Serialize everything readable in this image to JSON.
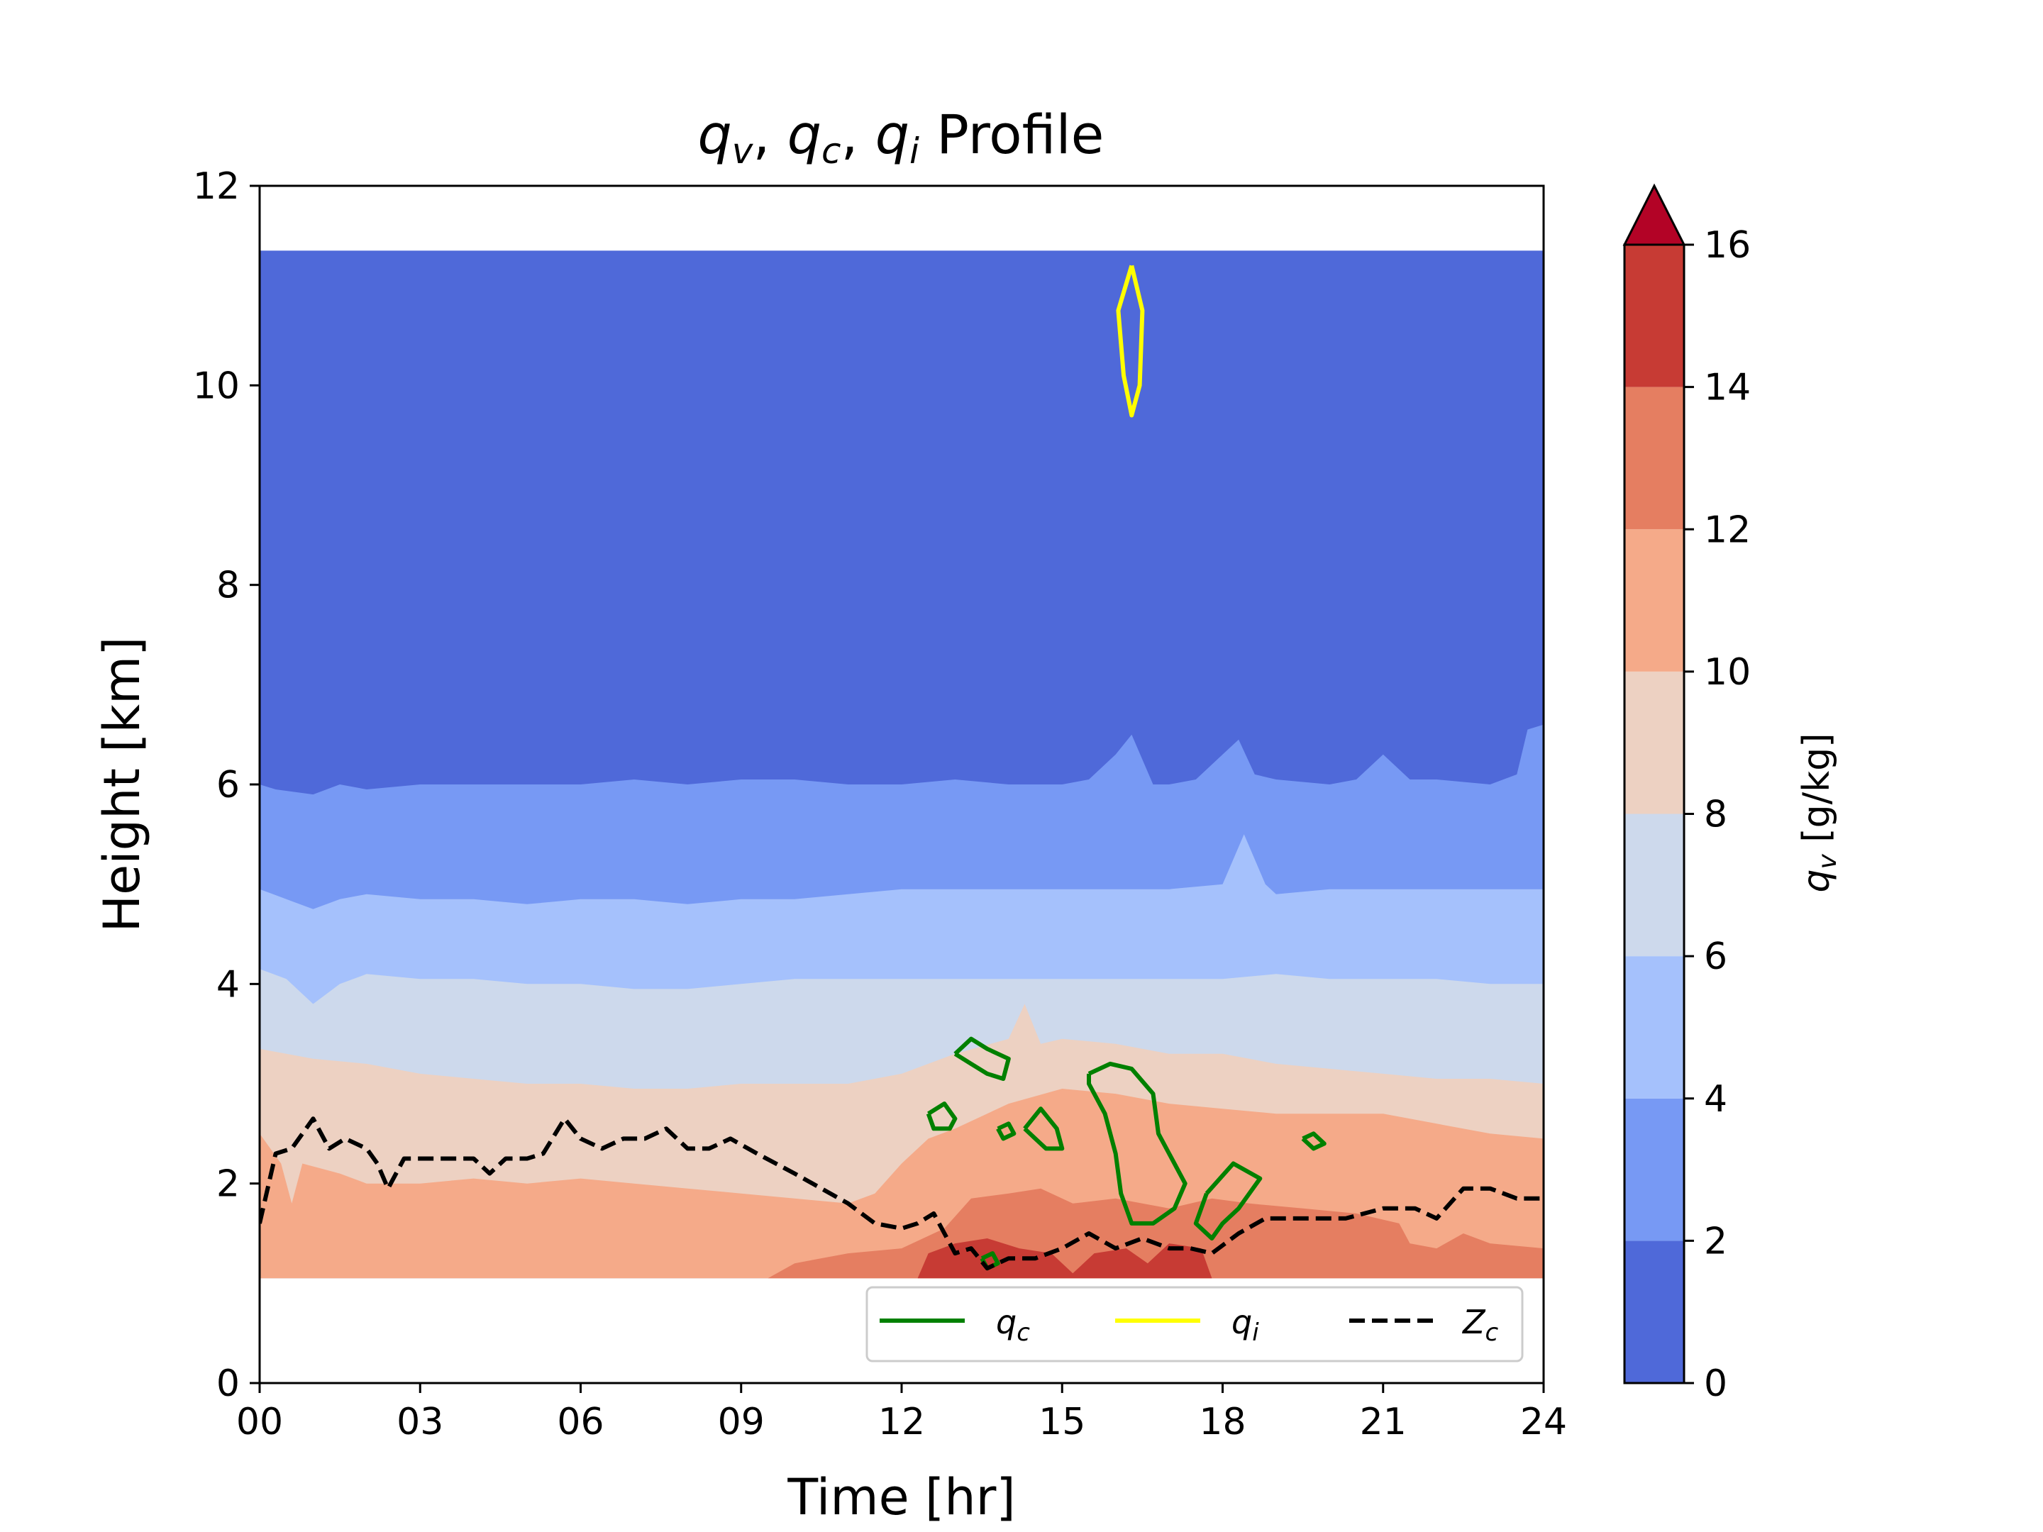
{
  "chart_data": {
    "type": "contour",
    "title": {
      "base": [
        "q",
        "q",
        "q"
      ],
      "subs": [
        "v",
        "c",
        "i"
      ],
      "suffix": " Profile"
    },
    "xlabel": "Time [hr]",
    "ylabel": "Height [km]",
    "xlim": [
      0,
      24
    ],
    "ylim": [
      0,
      12
    ],
    "x_ticks": [
      0,
      3,
      6,
      9,
      12,
      15,
      18,
      21,
      24
    ],
    "x_tick_labels": [
      "00",
      "03",
      "06",
      "09",
      "12",
      "15",
      "18",
      "21",
      "24"
    ],
    "y_ticks": [
      0,
      2,
      4,
      6,
      8,
      10,
      12
    ],
    "y_tick_labels": [
      "0",
      "2",
      "4",
      "6",
      "8",
      "10",
      "12"
    ],
    "data_extent": {
      "time": [
        0,
        24
      ],
      "height": [
        1.05,
        11.35
      ]
    },
    "colorbar": {
      "label": {
        "base": "q",
        "sub": "v",
        "unit": " [g/kg]"
      },
      "levels": [
        0,
        2,
        4,
        6,
        8,
        10,
        12,
        14,
        16
      ],
      "tick_labels": [
        "0",
        "2",
        "4",
        "6",
        "8",
        "10",
        "12",
        "14",
        "16"
      ],
      "colors": [
        "#4f69d9",
        "#7799f4",
        "#a5c1fc",
        "#cdd9ec",
        "#edd1c2",
        "#f5aa89",
        "#e57e61",
        "#c73b34"
      ],
      "over_color": "#b30326",
      "extend": "max"
    },
    "qv_bands": [
      {
        "level_min": 0,
        "level_max": 2,
        "color": "#4f69d9",
        "upper_boundary": [
          [
            0,
            11.35
          ],
          [
            24,
            11.35
          ]
        ]
      },
      {
        "level_min": 2,
        "level_max": 4,
        "color": "#7799f4",
        "upper_boundary": [
          [
            0,
            6.0
          ],
          [
            0.3,
            5.95
          ],
          [
            1,
            5.9
          ],
          [
            1.5,
            6.0
          ],
          [
            2,
            5.95
          ],
          [
            3,
            6.0
          ],
          [
            4,
            6.0
          ],
          [
            5,
            6.0
          ],
          [
            6,
            6.0
          ],
          [
            7,
            6.05
          ],
          [
            8,
            6.0
          ],
          [
            9,
            6.05
          ],
          [
            10,
            6.05
          ],
          [
            11,
            6.0
          ],
          [
            12,
            6.0
          ],
          [
            13,
            6.05
          ],
          [
            14,
            6.0
          ],
          [
            15,
            6.0
          ],
          [
            15.5,
            6.05
          ],
          [
            16,
            6.3
          ],
          [
            16.3,
            6.5
          ],
          [
            16.7,
            6.0
          ],
          [
            17,
            6.0
          ],
          [
            17.5,
            6.05
          ],
          [
            18,
            6.3
          ],
          [
            18.3,
            6.45
          ],
          [
            18.6,
            6.1
          ],
          [
            19,
            6.05
          ],
          [
            20,
            6.0
          ],
          [
            20.5,
            6.05
          ],
          [
            21,
            6.3
          ],
          [
            21.5,
            6.05
          ],
          [
            22,
            6.05
          ],
          [
            23,
            6.0
          ],
          [
            23.5,
            6.1
          ],
          [
            23.7,
            6.55
          ],
          [
            24,
            6.6
          ]
        ]
      },
      {
        "level_min": 4,
        "level_max": 6,
        "color": "#a5c1fc",
        "upper_boundary": [
          [
            0,
            4.95
          ],
          [
            0.5,
            4.85
          ],
          [
            1,
            4.75
          ],
          [
            1.5,
            4.85
          ],
          [
            2,
            4.9
          ],
          [
            3,
            4.85
          ],
          [
            4,
            4.85
          ],
          [
            5,
            4.8
          ],
          [
            6,
            4.85
          ],
          [
            7,
            4.85
          ],
          [
            8,
            4.8
          ],
          [
            9,
            4.85
          ],
          [
            10,
            4.85
          ],
          [
            11,
            4.9
          ],
          [
            12,
            4.95
          ],
          [
            13,
            4.95
          ],
          [
            14,
            4.95
          ],
          [
            15,
            4.95
          ],
          [
            16,
            4.95
          ],
          [
            17,
            4.95
          ],
          [
            18,
            5.0
          ],
          [
            18.4,
            5.5
          ],
          [
            18.8,
            5.0
          ],
          [
            19,
            4.9
          ],
          [
            20,
            4.95
          ],
          [
            21,
            4.95
          ],
          [
            22,
            4.95
          ],
          [
            23,
            4.95
          ],
          [
            24,
            4.95
          ]
        ]
      },
      {
        "level_min": 6,
        "level_max": 8,
        "color": "#cdd9ec",
        "upper_boundary": [
          [
            0,
            4.15
          ],
          [
            0.5,
            4.05
          ],
          [
            1,
            3.8
          ],
          [
            1.5,
            4.0
          ],
          [
            2,
            4.1
          ],
          [
            3,
            4.05
          ],
          [
            4,
            4.05
          ],
          [
            5,
            4.0
          ],
          [
            6,
            4.0
          ],
          [
            7,
            3.95
          ],
          [
            8,
            3.95
          ],
          [
            9,
            4.0
          ],
          [
            10,
            4.05
          ],
          [
            11,
            4.05
          ],
          [
            12,
            4.05
          ],
          [
            13,
            4.05
          ],
          [
            14,
            4.05
          ],
          [
            15,
            4.05
          ],
          [
            16,
            4.05
          ],
          [
            17,
            4.05
          ],
          [
            18,
            4.05
          ],
          [
            19,
            4.1
          ],
          [
            20,
            4.05
          ],
          [
            21,
            4.05
          ],
          [
            22,
            4.05
          ],
          [
            23,
            4.0
          ],
          [
            24,
            4.0
          ]
        ]
      },
      {
        "level_min": 8,
        "level_max": 10,
        "color": "#edd1c2",
        "upper_boundary": [
          [
            0,
            3.35
          ],
          [
            0.5,
            3.3
          ],
          [
            1,
            3.25
          ],
          [
            2,
            3.2
          ],
          [
            3,
            3.1
          ],
          [
            4,
            3.05
          ],
          [
            5,
            3.0
          ],
          [
            6,
            3.0
          ],
          [
            7,
            2.95
          ],
          [
            8,
            2.95
          ],
          [
            9,
            3.0
          ],
          [
            10,
            3.0
          ],
          [
            11,
            3.0
          ],
          [
            12,
            3.1
          ],
          [
            13,
            3.3
          ],
          [
            14,
            3.45
          ],
          [
            14.3,
            3.8
          ],
          [
            14.6,
            3.4
          ],
          [
            15,
            3.45
          ],
          [
            16,
            3.4
          ],
          [
            17,
            3.3
          ],
          [
            18,
            3.3
          ],
          [
            19,
            3.2
          ],
          [
            20,
            3.15
          ],
          [
            21,
            3.1
          ],
          [
            22,
            3.05
          ],
          [
            23,
            3.05
          ],
          [
            24,
            3.0
          ]
        ]
      },
      {
        "level_min": 10,
        "level_max": 12,
        "color": "#f5aa89",
        "upper_boundary": [
          [
            0,
            2.5
          ],
          [
            0.4,
            2.2
          ],
          [
            0.6,
            1.8
          ],
          [
            0.8,
            2.2
          ],
          [
            1.5,
            2.1
          ],
          [
            2,
            2.0
          ],
          [
            3,
            2.0
          ],
          [
            4,
            2.05
          ],
          [
            5,
            2.0
          ],
          [
            6,
            2.05
          ],
          [
            7,
            2.0
          ],
          [
            8,
            1.95
          ],
          [
            9,
            1.9
          ],
          [
            10,
            1.85
          ],
          [
            11,
            1.8
          ],
          [
            11.5,
            1.9
          ],
          [
            12,
            2.2
          ],
          [
            12.5,
            2.45
          ],
          [
            13,
            2.55
          ],
          [
            14,
            2.8
          ],
          [
            15,
            2.95
          ],
          [
            16,
            2.9
          ],
          [
            17,
            2.8
          ],
          [
            18,
            2.75
          ],
          [
            19,
            2.7
          ],
          [
            20,
            2.7
          ],
          [
            21,
            2.7
          ],
          [
            22,
            2.6
          ],
          [
            23,
            2.5
          ],
          [
            24,
            2.45
          ]
        ]
      },
      {
        "level_min": 12,
        "level_max": 14,
        "color": "#e57e61",
        "upper_boundary": [
          [
            0,
            1.05
          ],
          [
            9.5,
            1.05
          ],
          [
            10,
            1.2
          ],
          [
            11,
            1.3
          ],
          [
            12,
            1.35
          ],
          [
            12.8,
            1.55
          ],
          [
            13.3,
            1.85
          ],
          [
            14,
            1.9
          ],
          [
            14.6,
            1.95
          ],
          [
            15.2,
            1.8
          ],
          [
            16,
            1.85
          ],
          [
            17,
            1.75
          ],
          [
            17.8,
            1.85
          ],
          [
            18.5,
            1.8
          ],
          [
            19.5,
            1.75
          ],
          [
            20.5,
            1.7
          ],
          [
            21.3,
            1.6
          ],
          [
            21.5,
            1.4
          ],
          [
            22,
            1.35
          ],
          [
            22.5,
            1.5
          ],
          [
            23,
            1.4
          ],
          [
            24,
            1.35
          ]
        ]
      },
      {
        "level_min": 14,
        "level_max": 16,
        "color": "#c73b34",
        "upper_boundary": [
          [
            0,
            1.05
          ],
          [
            12.3,
            1.05
          ],
          [
            12.5,
            1.3
          ],
          [
            13,
            1.4
          ],
          [
            13.6,
            1.45
          ],
          [
            14.2,
            1.35
          ],
          [
            14.8,
            1.3
          ],
          [
            15.2,
            1.1
          ],
          [
            15.6,
            1.3
          ],
          [
            16.2,
            1.35
          ],
          [
            16.6,
            1.2
          ],
          [
            17,
            1.4
          ],
          [
            17.6,
            1.35
          ],
          [
            17.8,
            1.05
          ],
          [
            24,
            1.05
          ]
        ]
      }
    ],
    "qc_contours": [
      [
        [
          13.0,
          3.3
        ],
        [
          13.3,
          3.45
        ],
        [
          13.6,
          3.35
        ],
        [
          14.0,
          3.25
        ],
        [
          13.9,
          3.05
        ],
        [
          13.6,
          3.1
        ],
        [
          13.3,
          3.2
        ],
        [
          13.0,
          3.3
        ]
      ],
      [
        [
          12.5,
          2.7
        ],
        [
          12.8,
          2.8
        ],
        [
          13.0,
          2.65
        ],
        [
          12.9,
          2.55
        ],
        [
          12.6,
          2.55
        ],
        [
          12.5,
          2.7
        ]
      ],
      [
        [
          13.8,
          2.55
        ],
        [
          14.0,
          2.6
        ],
        [
          14.1,
          2.5
        ],
        [
          13.9,
          2.45
        ],
        [
          13.8,
          2.55
        ]
      ],
      [
        [
          14.3,
          2.55
        ],
        [
          14.6,
          2.75
        ],
        [
          14.9,
          2.55
        ],
        [
          15.0,
          2.35
        ],
        [
          14.7,
          2.35
        ],
        [
          14.5,
          2.45
        ],
        [
          14.3,
          2.55
        ]
      ],
      [
        [
          15.5,
          3.1
        ],
        [
          15.9,
          3.2
        ],
        [
          16.3,
          3.15
        ],
        [
          16.7,
          2.9
        ],
        [
          16.8,
          2.5
        ],
        [
          17.0,
          2.3
        ],
        [
          17.3,
          2.0
        ],
        [
          17.1,
          1.75
        ],
        [
          16.7,
          1.6
        ],
        [
          16.3,
          1.6
        ],
        [
          16.1,
          1.9
        ],
        [
          16.0,
          2.3
        ],
        [
          15.8,
          2.7
        ],
        [
          15.5,
          3.0
        ],
        [
          15.5,
          3.1
        ]
      ],
      [
        [
          17.7,
          1.9
        ],
        [
          18.2,
          2.2
        ],
        [
          18.7,
          2.05
        ],
        [
          18.3,
          1.75
        ],
        [
          18.0,
          1.6
        ],
        [
          17.8,
          1.45
        ],
        [
          17.5,
          1.6
        ],
        [
          17.7,
          1.9
        ]
      ],
      [
        [
          19.5,
          2.45
        ],
        [
          19.7,
          2.5
        ],
        [
          19.9,
          2.4
        ],
        [
          19.7,
          2.35
        ],
        [
          19.5,
          2.45
        ]
      ],
      [
        [
          13.5,
          1.25
        ],
        [
          13.7,
          1.3
        ],
        [
          13.8,
          1.2
        ],
        [
          13.6,
          1.15
        ],
        [
          13.5,
          1.25
        ]
      ]
    ],
    "qi_contours": [
      [
        [
          16.3,
          11.2
        ],
        [
          16.5,
          10.75
        ],
        [
          16.45,
          10.0
        ],
        [
          16.3,
          9.7
        ],
        [
          16.15,
          10.1
        ],
        [
          16.05,
          10.75
        ],
        [
          16.3,
          11.2
        ]
      ]
    ],
    "series": [
      {
        "name": "Z",
        "sub": "c",
        "style": "dashed",
        "color": "#000000",
        "time": [
          0,
          0.3,
          0.6,
          1.0,
          1.3,
          1.6,
          2.0,
          2.2,
          2.4,
          2.7,
          3.0,
          3.5,
          4.0,
          4.3,
          4.6,
          5.0,
          5.3,
          5.7,
          6.0,
          6.4,
          6.8,
          7.2,
          7.6,
          8.0,
          8.4,
          8.8,
          9.3,
          10.0,
          10.5,
          11.0,
          11.5,
          12.0,
          12.3,
          12.6,
          13.0,
          13.3,
          13.6,
          14.0,
          14.5,
          15.0,
          15.5,
          16.0,
          16.5,
          17.0,
          17.4,
          17.8,
          18.3,
          18.8,
          19.5,
          20.3,
          21.0,
          21.6,
          22.0,
          22.5,
          23.0,
          23.5,
          24.0
        ],
        "height": [
          1.6,
          2.3,
          2.35,
          2.65,
          2.35,
          2.45,
          2.35,
          2.2,
          1.95,
          2.25,
          2.25,
          2.25,
          2.25,
          2.1,
          2.25,
          2.25,
          2.3,
          2.65,
          2.45,
          2.35,
          2.45,
          2.45,
          2.55,
          2.35,
          2.35,
          2.45,
          2.3,
          2.1,
          1.95,
          1.8,
          1.6,
          1.55,
          1.6,
          1.7,
          1.3,
          1.35,
          1.15,
          1.25,
          1.25,
          1.35,
          1.5,
          1.35,
          1.45,
          1.35,
          1.35,
          1.3,
          1.5,
          1.65,
          1.65,
          1.65,
          1.75,
          1.75,
          1.65,
          1.95,
          1.95,
          1.85,
          1.85
        ]
      }
    ],
    "legend": {
      "placement": "lower-right",
      "entries": [
        {
          "key": "qc",
          "base": "q",
          "sub": "c",
          "color": "#008000",
          "style": "solid"
        },
        {
          "key": "qi",
          "base": "q",
          "sub": "i",
          "color": "#ffff00",
          "style": "solid"
        },
        {
          "key": "zc",
          "base": "Z",
          "sub": "c",
          "color": "#000000",
          "style": "dashed"
        }
      ]
    }
  }
}
